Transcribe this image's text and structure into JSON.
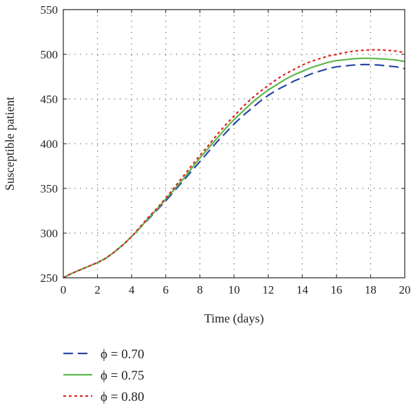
{
  "chart_data": {
    "type": "line",
    "xlabel": "Time (days)",
    "ylabel": "Susceptible patient",
    "xlim": [
      0,
      20
    ],
    "ylim": [
      250,
      550
    ],
    "xticks": [
      0,
      2,
      4,
      6,
      8,
      10,
      12,
      14,
      16,
      18,
      20
    ],
    "yticks": [
      250,
      300,
      350,
      400,
      450,
      500,
      550
    ],
    "grid": "dotted",
    "legend_position": "bottom-left, below plot",
    "x": [
      0,
      0.5,
      1,
      1.5,
      2,
      2.5,
      3,
      3.5,
      4,
      4.5,
      5,
      5.5,
      6,
      6.5,
      7,
      7.5,
      8,
      8.5,
      9,
      9.5,
      10,
      10.5,
      11,
      11.5,
      12,
      12.5,
      13,
      13.5,
      14,
      14.5,
      15,
      15.5,
      16,
      16.5,
      17,
      17.5,
      18,
      18.5,
      19,
      19.5,
      20
    ],
    "series": [
      {
        "name": "ϕ = 0.70",
        "color": "#2b45a6",
        "dash": "dashed",
        "values": [
          250,
          255,
          259,
          263,
          267,
          272,
          279,
          287,
          296,
          306,
          316,
          326,
          336,
          347,
          358,
          369,
          380,
          391,
          402,
          412,
          422,
          431,
          439,
          447,
          454,
          460,
          465,
          470,
          474,
          478,
          481,
          484,
          486,
          487,
          488,
          488.5,
          488.5,
          488,
          487,
          486,
          484
        ]
      },
      {
        "name": "ϕ = 0.75",
        "color": "#5cb84a",
        "dash": "solid",
        "values": [
          250,
          255,
          259,
          263,
          267,
          272,
          279,
          287,
          296,
          306,
          317,
          327,
          338,
          349,
          360,
          372,
          384,
          395,
          406,
          417,
          427,
          436,
          445,
          453,
          460,
          466,
          472,
          477,
          481,
          485,
          488,
          491,
          493,
          494,
          495,
          495.5,
          495.5,
          495,
          494.5,
          493.5,
          492
        ]
      },
      {
        "name": "ϕ = 0.80",
        "color": "#e02020",
        "dash": "dotted",
        "values": [
          250,
          255,
          259,
          263,
          267,
          272,
          279,
          287,
          296,
          307,
          318,
          328,
          339,
          351,
          363,
          375,
          387,
          398,
          410,
          421,
          431,
          441,
          450,
          458,
          465,
          472,
          478,
          483,
          488,
          492,
          495,
          498,
          500,
          502,
          503.5,
          504.5,
          505,
          505,
          504.5,
          503.5,
          502
        ]
      }
    ]
  }
}
